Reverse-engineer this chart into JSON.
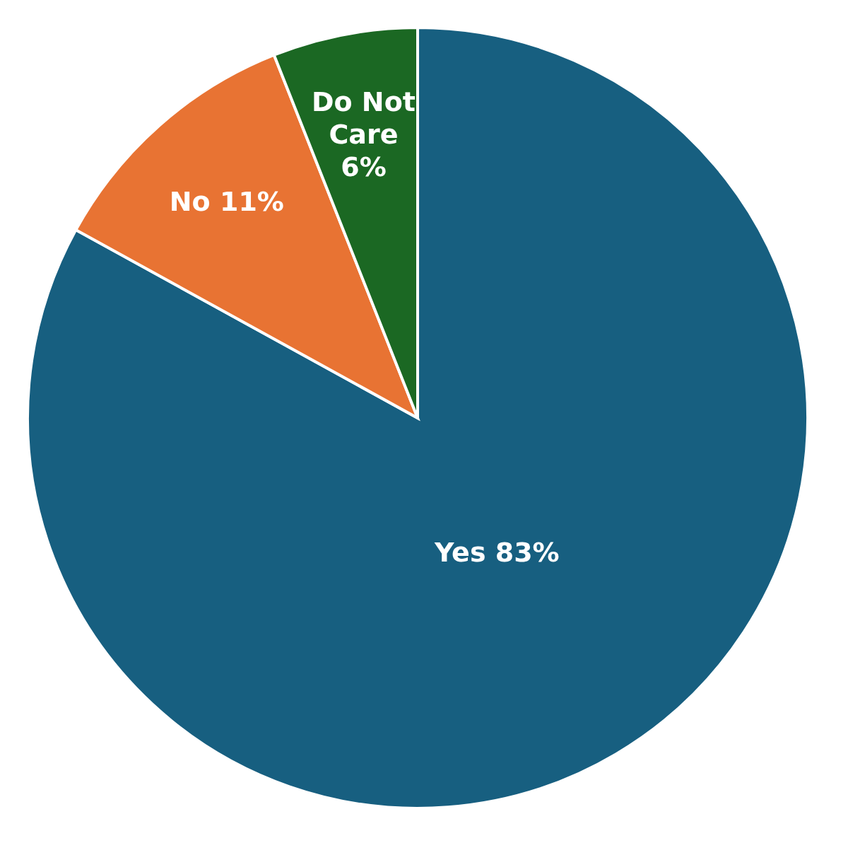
{
  "chart_data": {
    "type": "pie",
    "categories": [
      "Yes",
      "No",
      "Do Not Care"
    ],
    "values": [
      83,
      11,
      6
    ],
    "colors": [
      "#175f80",
      "#e87333",
      "#1b6823"
    ],
    "value_labels": [
      "83%",
      "11%",
      "6%"
    ]
  }
}
